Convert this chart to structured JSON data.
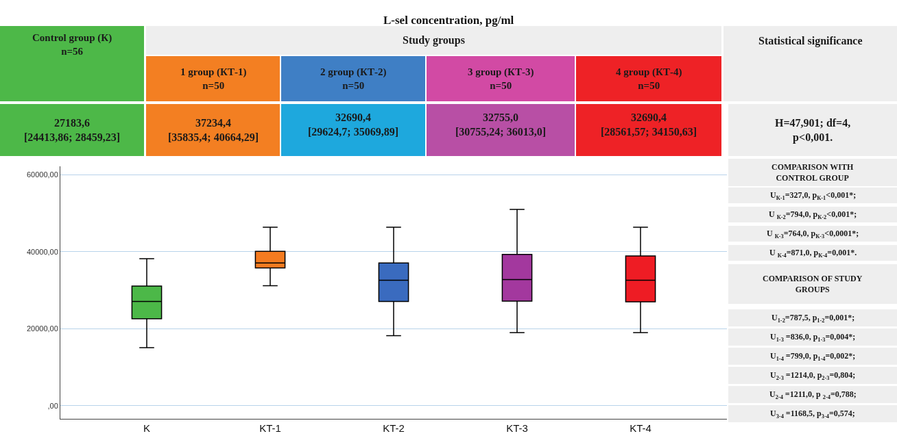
{
  "chart_data": {
    "type": "box",
    "title": "L-sel concentration, pg/ml",
    "categories": [
      "K",
      "KT-1",
      "KT-2",
      "KT-3",
      "KT-4"
    ],
    "colors": [
      "#4cb848",
      "#f47b20",
      "#3a6bbf",
      "#a3389e",
      "#ee1c24"
    ],
    "boxes": [
      {
        "low": 15100,
        "q1": 22600,
        "median": 27100,
        "q3": 31100,
        "high": 38200
      },
      {
        "low": 31200,
        "q1": 35800,
        "median": 37100,
        "q3": 40100,
        "high": 46400
      },
      {
        "low": 18200,
        "q1": 27100,
        "median": 32600,
        "q3": 37100,
        "high": 46400
      },
      {
        "low": 19000,
        "q1": 27200,
        "median": 32800,
        "q3": 39300,
        "high": 51000
      },
      {
        "low": 19000,
        "q1": 27000,
        "median": 32600,
        "q3": 38900,
        "high": 46400
      }
    ],
    "ylim": [
      -3400,
      62200
    ],
    "yticks": [
      {
        "value": 0,
        "label": ",00"
      },
      {
        "value": 20000,
        "label": "20000,00"
      },
      {
        "value": 40000,
        "label": "40000,00"
      },
      {
        "value": 60000,
        "label": "60000,00"
      }
    ],
    "grid": "y",
    "annotations": [
      "Control group (К)\nn=56",
      "Study groups",
      "Statistical significance",
      "1 group (КТ-1)\nn=50",
      "2 group (КТ-2)\nn=50",
      "3 group (КТ-3)\nn=50",
      "4 group (КТ-4)\nn=50",
      "27183,6\n[24413,86; 28459,23]",
      "37234,4\n[35835,4; 40664,29]",
      "32690,4\n[29624,7; 35069,89]",
      "32755,0\n[30755,24; 36013,0]",
      "32690,4\n[28561,57; 34150,63]",
      "H=47,901; df=4,\np<0,001.",
      "COMPARISON WITH\nCONTROL GROUP",
      "U$_{К-1}$=327,0, p$_{К-1}$<0,001*;",
      "U $_{К-2}$=794,0, p$_{К-2}$<0,001*;",
      "U $_{К-3}$=764,0, p$_{К-3}$<0,0001*;",
      "U $_{К-4}$=871,0, p$_{К-4}$=0,001*.",
      "COMPARISON OF STUDY\nGROUPS",
      "U$_{1-2}$=787,5, p$_{1-2}$=0,001*;",
      "U$_{1-3}$ =836,0, p$_{1-3}$=0,004*;",
      "U$_{1-4}$ =799,0, p$_{1-4}$=0,002*;",
      "U$_{2-3}$ =1214,0, p$_{2-3}$=0,804;",
      "U$_{2-4}$ =1211,0, p $_{2-4}$=0,788;",
      "U$_{3-4}$ =1168,5, p$_{3-4}$=0,574;"
    ]
  }
}
